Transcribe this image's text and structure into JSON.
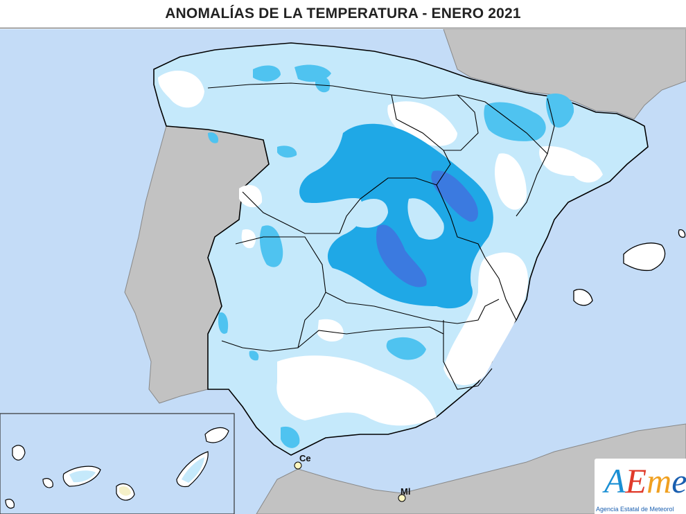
{
  "title": "ANOMALÍAS DE LA TEMPERATURA - ENERO 2021",
  "cities": [
    {
      "code": "Ce"
    },
    {
      "code": "Ml"
    }
  ],
  "logo": {
    "text_a": "A",
    "text_e": "E",
    "text_m": "m",
    "text_e2": "e",
    "subtitle": "Agencia Estatal de Meteorol"
  },
  "colors": {
    "sea": "#c4dcf7",
    "land_other": "#c2c2c2",
    "anomaly_near_zero": "#ffffff",
    "anomaly_light": "#c5e9fb",
    "anomaly_medium": "#4fc3f0",
    "anomaly_strong": "#1fa8e6",
    "anomaly_deep": "#3b7ae0",
    "border": "#000000"
  }
}
